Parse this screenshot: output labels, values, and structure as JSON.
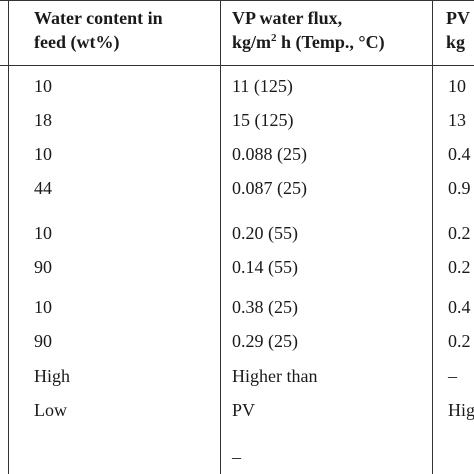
{
  "headers": {
    "water_content_line1": "Water content in",
    "water_content_line2": "feed (wt%)",
    "vp_line1": "VP water flux,",
    "vp_line2_a": "kg/m",
    "vp_line2_sup": "2",
    "vp_line2_b": " h (Temp., °C)",
    "pv_line1": "PV",
    "pv_line2": "kg"
  },
  "rows": [
    {
      "water": "10",
      "vp": "11 (125)",
      "pv": "10"
    },
    {
      "water": "18",
      "vp": "15 (125)",
      "pv": "13"
    },
    {
      "water": "10",
      "vp": "0.088 (25)",
      "pv": "0.4"
    },
    {
      "water": "44",
      "vp": "0.087 (25)",
      "pv": "0.9"
    },
    {
      "water": "10",
      "vp": "0.20 (55)",
      "pv": "0.2"
    },
    {
      "water": "90",
      "vp": "0.14 (55)",
      "pv": "0.2"
    },
    {
      "water": "10",
      "vp": "0.38 (25)",
      "pv": "0.4"
    },
    {
      "water": "90",
      "vp": "0.29 (25)",
      "pv": "0.2"
    },
    {
      "water": "High",
      "vp": "Higher than",
      "pv": "–"
    },
    {
      "water": "Low",
      "vp": "PV",
      "pv": "Hig"
    },
    {
      "water": "",
      "vp": "–",
      "pv": ""
    }
  ]
}
